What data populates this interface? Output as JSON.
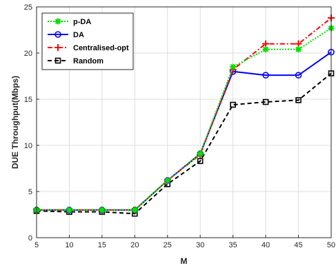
{
  "chart_data": {
    "type": "line",
    "xlabel": "M",
    "ylabel": "DUE Throughput(Mbps)",
    "x": [
      5,
      10,
      15,
      20,
      25,
      30,
      35,
      40,
      45,
      50
    ],
    "xlim": [
      5,
      50
    ],
    "ylim": [
      0,
      25
    ],
    "xticks": [
      5,
      10,
      15,
      20,
      25,
      30,
      35,
      40,
      45,
      50
    ],
    "yticks": [
      0,
      5,
      10,
      15,
      20,
      25
    ],
    "grid": true,
    "legend_position": "top-left",
    "series": [
      {
        "name": "p-DA",
        "color": "#00e000",
        "dash": "dotted",
        "marker": "asterisk",
        "values": [
          3.0,
          3.0,
          3.0,
          3.0,
          6.2,
          9.1,
          18.5,
          20.4,
          20.4,
          22.7
        ]
      },
      {
        "name": "DA",
        "color": "#0000ff",
        "dash": "solid",
        "marker": "circle",
        "values": [
          3.0,
          3.0,
          3.0,
          3.0,
          6.2,
          9.1,
          18.0,
          17.6,
          17.6,
          20.1
        ]
      },
      {
        "name": "Centralised-opt",
        "color": "#ff0000",
        "dash": "dashdot",
        "marker": "plus",
        "values": [
          3.0,
          3.0,
          3.0,
          3.0,
          6.2,
          9.0,
          18.2,
          21.0,
          21.0,
          23.8
        ]
      },
      {
        "name": "Random",
        "color": "#000000",
        "dash": "dashed",
        "marker": "square",
        "values": [
          2.9,
          2.8,
          2.8,
          2.6,
          5.8,
          8.3,
          14.4,
          14.7,
          14.9,
          17.8
        ]
      }
    ]
  }
}
